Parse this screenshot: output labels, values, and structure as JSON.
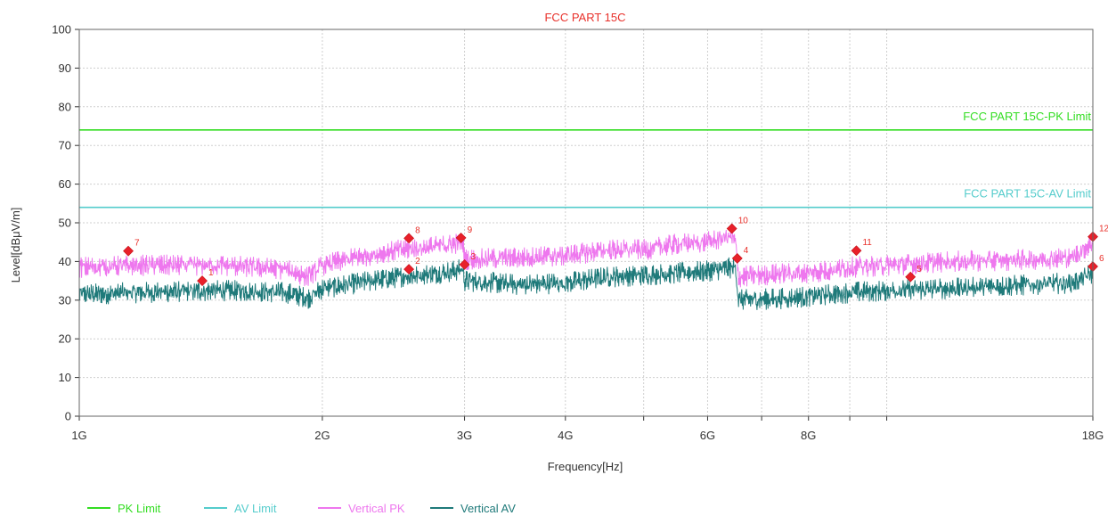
{
  "chart_data": {
    "type": "line",
    "title": "FCC PART 15C",
    "xlabel": "Frequency[Hz]",
    "ylabel": "Level[dBμV/m]",
    "x_scale": "log",
    "xlim_ghz": [
      1,
      18
    ],
    "ylim": [
      0,
      100
    ],
    "grid": true,
    "x_ticks": [
      {
        "ghz": 1,
        "label": "1G"
      },
      {
        "ghz": 2,
        "label": "2G"
      },
      {
        "ghz": 3,
        "label": "3G"
      },
      {
        "ghz": 4,
        "label": "4G"
      },
      {
        "ghz": 6,
        "label": "6G"
      },
      {
        "ghz": 8,
        "label": "8G"
      },
      {
        "ghz": 18,
        "label": "18G"
      }
    ],
    "x_grid_ghz": [
      1,
      2,
      3,
      4,
      5,
      6,
      7,
      8,
      9,
      10,
      18
    ],
    "y_ticks": [
      0,
      10,
      20,
      30,
      40,
      50,
      60,
      70,
      80,
      90,
      100
    ],
    "limits": [
      {
        "name": "FCC PART 15C-PK Limit",
        "value": 74,
        "color": "#33dd22"
      },
      {
        "name": "FCC PART 15C-AV Limit",
        "value": 54,
        "color": "#55cccc"
      }
    ],
    "series": [
      {
        "name": "Vertical PK",
        "color": "#ee77ee",
        "points": [
          [
            1.0,
            38.5
          ],
          [
            1.2,
            39
          ],
          [
            1.5,
            39
          ],
          [
            1.8,
            38
          ],
          [
            1.92,
            36
          ],
          [
            2.0,
            39
          ],
          [
            2.2,
            41
          ],
          [
            2.5,
            43
          ],
          [
            2.8,
            44
          ],
          [
            2.99,
            45
          ],
          [
            3.0,
            40.5
          ],
          [
            3.5,
            41
          ],
          [
            4.0,
            41.5
          ],
          [
            4.5,
            43
          ],
          [
            5.0,
            43
          ],
          [
            5.5,
            44.5
          ],
          [
            6.0,
            45
          ],
          [
            6.4,
            46.5
          ],
          [
            6.5,
            45
          ],
          [
            6.55,
            36
          ],
          [
            7.5,
            37
          ],
          [
            8.0,
            37
          ],
          [
            9.0,
            38.5
          ],
          [
            10.0,
            39
          ],
          [
            12.0,
            40
          ],
          [
            15.0,
            40.5
          ],
          [
            17.0,
            41
          ],
          [
            18.0,
            45
          ]
        ]
      },
      {
        "name": "Vertical AV",
        "color": "#1f7a7a",
        "points": [
          [
            1.0,
            31.5
          ],
          [
            1.2,
            32
          ],
          [
            1.5,
            32.5
          ],
          [
            1.8,
            32
          ],
          [
            1.92,
            30.5
          ],
          [
            2.0,
            33
          ],
          [
            2.3,
            35
          ],
          [
            2.5,
            36
          ],
          [
            2.8,
            37
          ],
          [
            2.99,
            38
          ],
          [
            3.0,
            35
          ],
          [
            3.5,
            34
          ],
          [
            4.0,
            34.5
          ],
          [
            4.5,
            36
          ],
          [
            5.0,
            36.5
          ],
          [
            5.5,
            37
          ],
          [
            6.0,
            37.5
          ],
          [
            6.5,
            38.5
          ],
          [
            6.55,
            30
          ],
          [
            7.5,
            30.5
          ],
          [
            8.0,
            31
          ],
          [
            9.0,
            32
          ],
          [
            10.0,
            32.5
          ],
          [
            12.0,
            33
          ],
          [
            15.0,
            34
          ],
          [
            17.0,
            34.5
          ],
          [
            18.0,
            37
          ]
        ]
      }
    ],
    "markers": [
      {
        "label": "1",
        "ghz": 1.42,
        "level": 35.0
      },
      {
        "label": "2",
        "ghz": 2.56,
        "level": 38.0
      },
      {
        "label": "3",
        "ghz": 3.0,
        "level": 39.2
      },
      {
        "label": "4",
        "ghz": 6.53,
        "level": 40.8
      },
      {
        "label": "5",
        "ghz": 10.7,
        "level": 36.0
      },
      {
        "label": "6",
        "ghz": 18.0,
        "level": 38.7
      },
      {
        "label": "7",
        "ghz": 1.15,
        "level": 42.7
      },
      {
        "label": "8",
        "ghz": 2.56,
        "level": 46.0
      },
      {
        "label": "9",
        "ghz": 2.97,
        "level": 46.1
      },
      {
        "label": "10",
        "ghz": 6.43,
        "level": 48.5
      },
      {
        "label": "11",
        "ghz": 9.17,
        "level": 42.8
      },
      {
        "label": "12",
        "ghz": 18.0,
        "level": 46.4
      }
    ],
    "legend_position": "bottom-left"
  }
}
